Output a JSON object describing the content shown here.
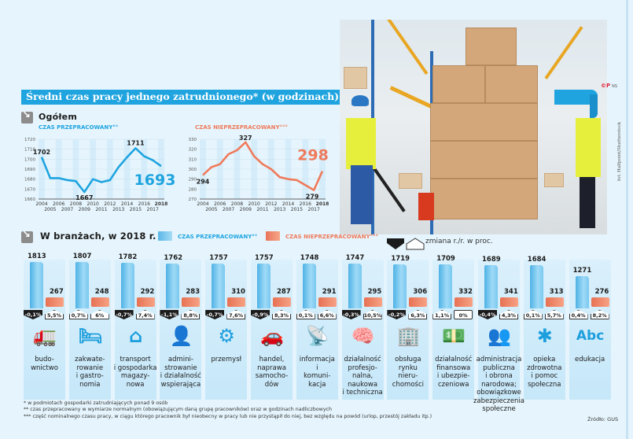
{
  "title": "Średni czas pracy jednego zatrudnionego* (w godzinach)",
  "logo": "©P",
  "logo_suffix": "NS",
  "photo_credit": "fot. Halfpoint/Shutterstock",
  "photo_alt": "warehouse workers with pallet jack",
  "colors": {
    "blue": "#1fa4df",
    "orange": "#ef7a5b",
    "background": "#e6f5fd"
  },
  "overall": {
    "heading": "Ogółem",
    "worked_label": "CZAS PRZEPRACOWANY°°",
    "not_worked_label": "CZAS NIEPRZEPRACOWANY°°°"
  },
  "sectors": {
    "heading": "W branżach, w 2018 r.",
    "legend_worked": "CZAS PRZEPRACOWANY°°",
    "legend_not_worked": "CZAS NIEPRZEPRACOWANY°°°",
    "legend_change": "zmiana r./r. w proc."
  },
  "chart_data": [
    {
      "type": "line",
      "title": "CZAS PRZEPRACOWANY°°",
      "x": [
        2004,
        2005,
        2006,
        2007,
        2008,
        2009,
        2010,
        2011,
        2012,
        2013,
        2014,
        2015,
        2016,
        2017,
        2018
      ],
      "series": [
        {
          "name": "czas przepracowany",
          "color": "#1fa4df",
          "values": [
            1702,
            1681,
            1681,
            1679,
            1678,
            1667,
            1680,
            1677,
            1679,
            1692,
            1702,
            1711,
            1703,
            1699,
            1693
          ]
        }
      ],
      "ylim": [
        1660,
        1720
      ],
      "yticks": [
        1660,
        1670,
        1680,
        1690,
        1700,
        1710,
        1720
      ],
      "xticks_top": [
        "2004",
        "2006",
        "2008",
        "2010",
        "2012",
        "2014",
        "2016",
        "2018"
      ],
      "xticks_bottom": [
        "2005",
        "2007",
        "2009",
        "2011",
        "2013",
        "2015",
        "2017"
      ],
      "annotations": [
        {
          "year": 2004,
          "label": "1702"
        },
        {
          "year": 2009,
          "label": "1667"
        },
        {
          "year": 2015,
          "label": "1711"
        },
        {
          "year": 2018,
          "label": "1693",
          "highlight": true
        }
      ],
      "grid": true
    },
    {
      "type": "line",
      "title": "CZAS NIEPRZEPRACOWANY°°°",
      "x": [
        2004,
        2005,
        2006,
        2007,
        2008,
        2009,
        2010,
        2011,
        2012,
        2013,
        2014,
        2015,
        2016,
        2017,
        2018
      ],
      "series": [
        {
          "name": "czas nieprzepracowany",
          "color": "#ef7a5b",
          "values": [
            294,
            302,
            305,
            315,
            319,
            327,
            313,
            305,
            300,
            292,
            290,
            289,
            284,
            279,
            298
          ]
        }
      ],
      "ylim": [
        270,
        330
      ],
      "yticks": [
        270,
        280,
        290,
        300,
        310,
        320,
        330
      ],
      "xticks_top": [
        "2004",
        "2006",
        "2008",
        "2010",
        "2012",
        "2014",
        "2016",
        "2018"
      ],
      "xticks_bottom": [
        "2005",
        "2007",
        "2009",
        "2011",
        "2013",
        "2015",
        "2017"
      ],
      "annotations": [
        {
          "year": 2004,
          "label": "294"
        },
        {
          "year": 2009,
          "label": "327"
        },
        {
          "year": 2017,
          "label": "279"
        },
        {
          "year": 2018,
          "label": "298",
          "highlight": true
        }
      ],
      "grid": true
    },
    {
      "type": "bar",
      "title": "W branżach, w 2018 r.",
      "categories": [
        "budo-\nwnictwo",
        "zakwate-\nrowanie\ni gastro-\nnomia",
        "transport\ni gospodarka\nmagazy-\nnowa",
        "admini-\nstrowanie\ni działalność\nwspierająca",
        "przemysł",
        "handel,\nnaprawa\nsamocho-\ndów",
        "informacja\ni\nkomuni-\nkacja",
        "działalność\nprofesjo-\nnalna,\nnaukowa\ni techniczna",
        "obsługa\nrynku\nnieru-\nchomości",
        "działalność\nfinansowa\ni ubezpie-\nczeniowa",
        "administracja\npubliczna\ni obrona\nnarodowa;\nobowiązkowe\nzabezpieczenia\nspołeczne",
        "opieka\nzdrowotna\ni pomoc\nspołeczna",
        "edukacja"
      ],
      "icons": [
        "concrete-mixer-icon",
        "bed-cutlery-icon",
        "warehouse-icon",
        "call-center-agent-icon",
        "gears-icon",
        "car-icon",
        "radio-tower-icon",
        "head-gear-icon",
        "office-buildings-icon",
        "banknotes-icon",
        "people-group-icon",
        "medical-star-icon",
        "abc-letters-icon"
      ],
      "series": [
        {
          "name": "czas przepracowany",
          "color": "#1fa4df",
          "values": [
            1813,
            1807,
            1782,
            1762,
            1757,
            1757,
            1748,
            1747,
            1719,
            1709,
            1689,
            1684,
            1271
          ],
          "change_pct": [
            "-0,1%",
            "0,7%",
            "-0,7%",
            "-1,1%",
            "-0,7%",
            "-0,9%",
            "0,1%",
            "-0,3%",
            "-0,2%",
            "1,1%",
            "-0,4%",
            "0,1%",
            "0,4%"
          ],
          "change_dir": [
            "down",
            "up",
            "down",
            "down",
            "down",
            "down",
            "up",
            "down",
            "down",
            "up",
            "down",
            "up",
            "up"
          ]
        },
        {
          "name": "czas nieprzepracowany",
          "color": "#ef7a5b",
          "values": [
            267,
            248,
            292,
            283,
            310,
            287,
            291,
            295,
            306,
            332,
            341,
            313,
            276
          ],
          "change_pct": [
            "5,5%",
            "6%",
            "7,4%",
            "8,8%",
            "7,6%",
            "8,3%",
            "6,6%",
            "10,5%",
            "6,3%",
            "0%",
            "4,3%",
            "5,7%",
            "8,2%"
          ],
          "change_dir": [
            "up",
            "up",
            "up",
            "up",
            "up",
            "up",
            "up",
            "up",
            "up",
            "flat",
            "up",
            "up",
            "up"
          ]
        }
      ]
    }
  ],
  "footnotes": [
    "* w podmiotach gospodarki zatrudniających ponad 9 osób",
    "** czas przepracowany w wymiarze normalnym (obowiązującym daną grupę pracowników) oraz w godzinach nadliczbowych",
    "*** część nominalnego czasu pracy, w ciągu którego pracownik był nieobecny w pracy lub nie przystąpił do niej, bez względu na powód (urlop, przestój zakładu itp.)"
  ],
  "source": "Źródło: GUS"
}
